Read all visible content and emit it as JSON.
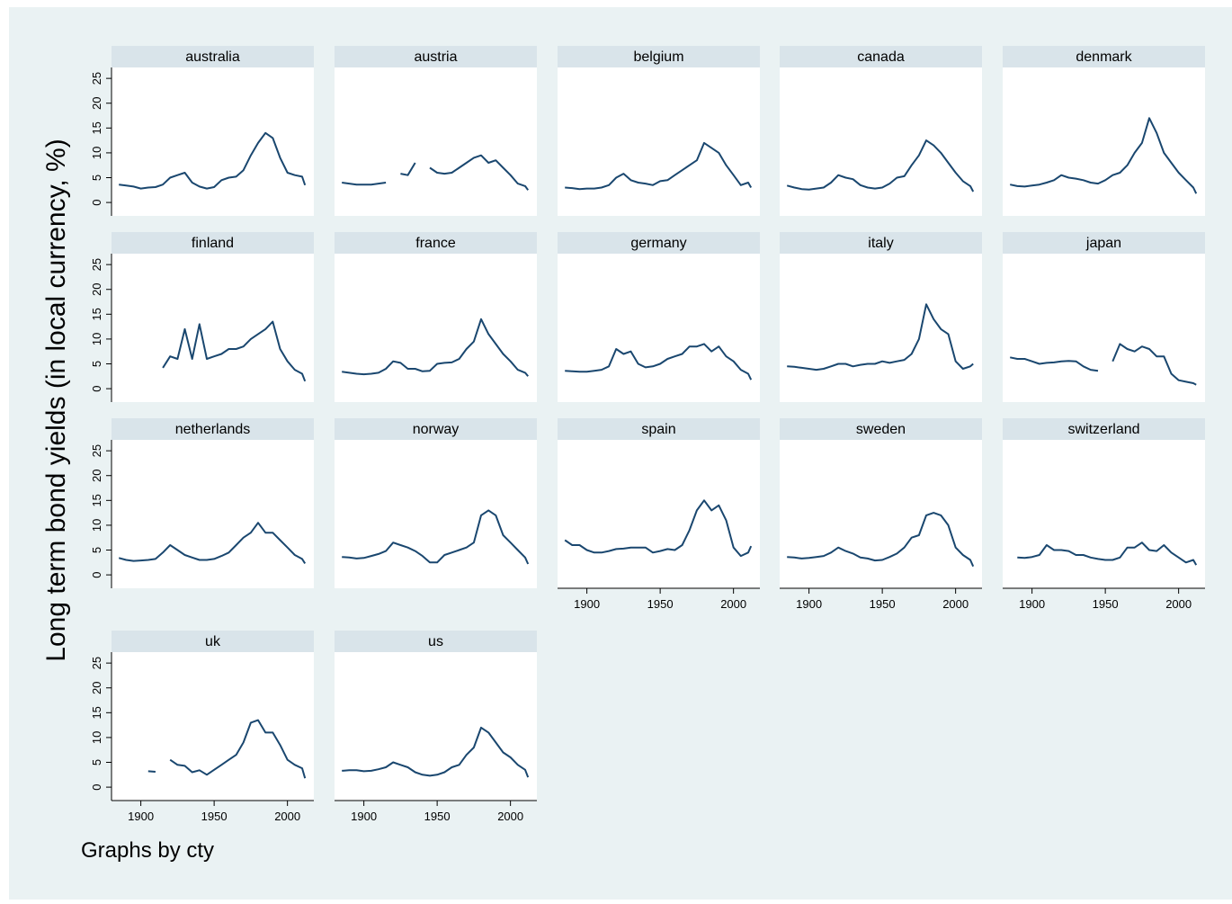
{
  "chart_data": [
    {
      "type": "line",
      "title": "australia",
      "values": [
        3.6,
        3.4,
        3.2,
        2.8,
        3.0,
        3.1,
        3.6,
        5,
        5.5,
        6,
        4,
        3.2,
        2.8,
        3.1,
        4.5,
        5,
        5.2,
        6.5,
        9.5,
        12,
        14,
        13,
        9,
        6,
        5.5,
        5.2,
        3.5
      ]
    },
    {
      "type": "line",
      "title": "austria",
      "values": [
        4,
        3.8,
        3.6,
        3.6,
        3.6,
        3.8,
        4,
        null,
        5.8,
        5.5,
        8,
        null,
        7,
        6,
        5.8,
        6,
        7,
        8,
        9,
        9.5,
        8,
        8.5,
        7,
        5.5,
        3.8,
        3.3,
        2.5
      ]
    },
    {
      "type": "line",
      "title": "belgium",
      "values": [
        3,
        2.9,
        2.7,
        2.8,
        2.8,
        3,
        3.5,
        5,
        5.8,
        4.5,
        4,
        3.8,
        3.5,
        4.3,
        4.5,
        5.5,
        6.5,
        7.5,
        8.5,
        12,
        11,
        10,
        7.5,
        5.5,
        3.5,
        4,
        3
      ]
    },
    {
      "type": "line",
      "title": "canada",
      "values": [
        3.4,
        3.0,
        2.7,
        2.6,
        2.8,
        3.0,
        4.0,
        5.5,
        5,
        4.7,
        3.5,
        3,
        2.8,
        3,
        3.8,
        5,
        5.3,
        7.5,
        9.5,
        12.5,
        11.5,
        10,
        8,
        6,
        4.3,
        3.3,
        2.2
      ]
    },
    {
      "type": "line",
      "title": "denmark",
      "values": [
        3.6,
        3.3,
        3.2,
        3.4,
        3.6,
        4,
        4.5,
        5.5,
        5,
        4.8,
        4.5,
        4,
        3.8,
        4.5,
        5.5,
        6,
        7.5,
        10,
        12,
        17,
        14,
        10,
        8,
        6,
        4.5,
        3,
        1.8
      ]
    },
    {
      "type": "line",
      "title": "finland",
      "values": [
        null,
        null,
        null,
        null,
        null,
        null,
        4.2,
        6.5,
        6,
        12,
        6,
        13,
        6,
        6.5,
        7,
        8,
        8,
        8.5,
        10,
        11,
        12,
        13.5,
        8,
        5.5,
        3.8,
        3,
        1.5
      ]
    },
    {
      "type": "line",
      "title": "france",
      "values": [
        3.4,
        3.2,
        3,
        2.9,
        3,
        3.2,
        4,
        5.5,
        5.2,
        4,
        4,
        3.5,
        3.6,
        5,
        5.2,
        5.3,
        6,
        8,
        9.5,
        14,
        11,
        9,
        7,
        5.5,
        3.8,
        3.2,
        2.5
      ]
    },
    {
      "type": "line",
      "title": "germany",
      "values": [
        3.6,
        3.5,
        3.4,
        3.4,
        3.6,
        3.8,
        4.5,
        8,
        7,
        7.5,
        5,
        4.3,
        4.5,
        5,
        6,
        6.5,
        7,
        8.5,
        8.5,
        9,
        7.5,
        8.5,
        6.5,
        5.5,
        3.8,
        3,
        1.8
      ]
    },
    {
      "type": "line",
      "title": "italy",
      "values": [
        4.5,
        4.4,
        4.2,
        4,
        3.8,
        4,
        4.5,
        5,
        5,
        4.5,
        4.8,
        5,
        5,
        5.5,
        5.2,
        5.5,
        5.8,
        7,
        10,
        17,
        14,
        12,
        11,
        5.5,
        4,
        4.5,
        5
      ]
    },
    {
      "type": "line",
      "title": "japan",
      "values": [
        6.3,
        6,
        6,
        5.5,
        5,
        5.2,
        5.3,
        5.5,
        5.6,
        5.5,
        4.5,
        3.8,
        3.6,
        null,
        5.5,
        9,
        8,
        7.5,
        8.5,
        8,
        6.5,
        6.5,
        3,
        1.7,
        1.4,
        1.1,
        0.8
      ]
    },
    {
      "type": "line",
      "title": "netherlands",
      "values": [
        3.4,
        3,
        2.8,
        2.9,
        3,
        3.2,
        4.5,
        6,
        5,
        4,
        3.5,
        3,
        3,
        3.2,
        3.8,
        4.5,
        6,
        7.5,
        8.5,
        10.5,
        8.5,
        8.5,
        7,
        5.5,
        4,
        3.2,
        2.3
      ]
    },
    {
      "type": "line",
      "title": "norway",
      "values": [
        3.6,
        3.5,
        3.3,
        3.4,
        3.8,
        4.2,
        4.8,
        6.5,
        6,
        5.5,
        4.8,
        3.8,
        2.5,
        2.5,
        4,
        4.5,
        5,
        5.5,
        6.5,
        12,
        13,
        12,
        8,
        6.5,
        5,
        3.5,
        2.2
      ]
    },
    {
      "type": "line",
      "title": "spain",
      "values": [
        7,
        6,
        6,
        5,
        4.5,
        4.5,
        4.8,
        5.2,
        5.3,
        5.5,
        5.5,
        5.5,
        4.5,
        4.8,
        5.2,
        5,
        6,
        9,
        13,
        15,
        13,
        14,
        11,
        5.5,
        3.8,
        4.5,
        5.8
      ]
    },
    {
      "type": "line",
      "title": "sweden",
      "values": [
        3.6,
        3.5,
        3.3,
        3.4,
        3.6,
        3.8,
        4.5,
        5.5,
        4.8,
        4.3,
        3.5,
        3.3,
        2.9,
        3,
        3.6,
        4.3,
        5.5,
        7.5,
        8,
        12,
        12.5,
        12,
        10,
        5.5,
        4,
        3,
        1.7
      ]
    },
    {
      "type": "line",
      "title": "switzerland",
      "values": [
        null,
        3.5,
        3.4,
        3.6,
        4,
        6,
        5,
        5,
        4.8,
        4,
        4,
        3.5,
        3.2,
        3,
        3,
        3.5,
        5.5,
        5.5,
        6.5,
        5,
        4.8,
        6,
        4.5,
        3.5,
        2.5,
        3,
        2
      ]
    },
    {
      "type": "line",
      "title": "uk",
      "values": [
        null,
        null,
        null,
        null,
        3.2,
        3.1,
        null,
        5.5,
        4.5,
        4.3,
        3,
        3.4,
        2.5,
        3.5,
        4.5,
        5.5,
        6.5,
        9,
        13,
        13.5,
        11,
        11,
        8.5,
        5.5,
        4.5,
        3.8,
        1.8
      ]
    },
    {
      "type": "line",
      "title": "us",
      "values": [
        3.3,
        3.4,
        3.4,
        3.2,
        3.3,
        3.6,
        4,
        5,
        4.5,
        4,
        3,
        2.5,
        2.3,
        2.5,
        3,
        4,
        4.5,
        6.5,
        8,
        12,
        11,
        9,
        7,
        6,
        4.5,
        3.5,
        2
      ]
    }
  ],
  "shared": {
    "ylabel": "Long term bond yields (in local currency, %)",
    "note": "Graphs by cty",
    "color": "#1a476f",
    "x": [
      1885,
      1890,
      1895,
      1900,
      1905,
      1910,
      1915,
      1920,
      1925,
      1930,
      1935,
      1940,
      1945,
      1950,
      1955,
      1960,
      1965,
      1970,
      1975,
      1980,
      1985,
      1990,
      1995,
      2000,
      2005,
      2010,
      2012
    ],
    "xlim": [
      1880,
      2018
    ],
    "xticks": [
      1900,
      1950,
      2000
    ],
    "ylim": [
      -2.7,
      27.2
    ],
    "yticks": [
      0,
      5,
      10,
      15,
      20,
      25
    ]
  }
}
